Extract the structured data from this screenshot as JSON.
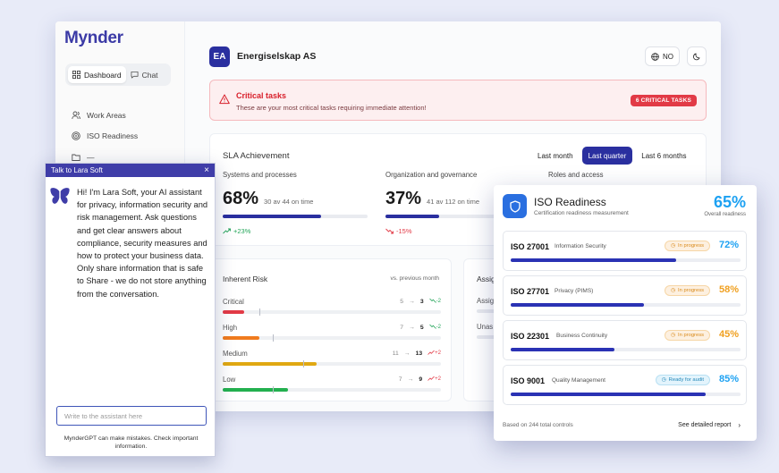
{
  "app": {
    "logo": "Mynder",
    "modes": [
      {
        "label": "Dashboard",
        "icon": "grid-icon"
      },
      {
        "label": "Chat",
        "icon": "chat-icon"
      }
    ],
    "nav": [
      {
        "label": "Work Areas",
        "icon": "users-icon"
      },
      {
        "label": "ISO Readiness",
        "icon": "target-icon"
      },
      {
        "label": "—",
        "icon": "folder-icon"
      }
    ],
    "org": {
      "initials": "EA",
      "name": "Energiselskap AS"
    },
    "language": "NO"
  },
  "alert": {
    "title": "Critical tasks",
    "subtitle": "These are your most critical tasks requiring immediate attention!",
    "badge": "6 CRITICAL TASKS"
  },
  "sla": {
    "title": "SLA Achievement",
    "ranges": [
      "Last month",
      "Last quarter",
      "Last 6 months"
    ],
    "active_range": "Last quarter",
    "metrics": [
      {
        "label": "Systems and processes",
        "pct": "68%",
        "detail": "30 av 44 on time",
        "fraction": 0.68,
        "trend": "+23%",
        "direction": "up"
      },
      {
        "label": "Organization and governance",
        "pct": "37%",
        "detail": "41 av 112 on time",
        "fraction": 0.37,
        "trend": "-15%",
        "direction": "down"
      },
      {
        "label": "Roles and access",
        "pct": "",
        "detail": "",
        "fraction": 0,
        "trend": "",
        "direction": ""
      }
    ]
  },
  "risk": {
    "title": "Inherent Risk",
    "compare": "vs. previous month",
    "rows": [
      {
        "label": "Critical",
        "from": "5",
        "to": "3",
        "delta": "-2",
        "trend": "down",
        "color": "#e23a46",
        "fraction": 0.1,
        "prev_fraction": 0.17
      },
      {
        "label": "High",
        "from": "7",
        "to": "5",
        "delta": "-2",
        "trend": "down",
        "color": "#f07b1e",
        "fraction": 0.17,
        "prev_fraction": 0.23
      },
      {
        "label": "Medium",
        "from": "11",
        "to": "13",
        "delta": "+2",
        "trend": "up",
        "color": "#e0a812",
        "fraction": 0.43,
        "prev_fraction": 0.37
      },
      {
        "label": "Low",
        "from": "7",
        "to": "9",
        "delta": "+2",
        "trend": "up",
        "color": "#23b04f",
        "fraction": 0.3,
        "prev_fraction": 0.23
      }
    ]
  },
  "assign": {
    "title": "Assig",
    "rows": [
      "Assig",
      "Unas"
    ]
  },
  "iso": {
    "title": "ISO Readiness",
    "subtitle": "Certification readiness measurement",
    "overall": "65%",
    "overall_label": "Overall readiness",
    "items": [
      {
        "code": "ISO 27001",
        "name": "Information Security",
        "status": "In progress",
        "status_type": "prog",
        "pct": "72%",
        "fraction": 0.72,
        "color": "#1da1f2"
      },
      {
        "code": "ISO 27701",
        "name": "Privacy (PIMS)",
        "status": "In progress",
        "status_type": "prog",
        "pct": "58%",
        "fraction": 0.58,
        "color": "#f0a020"
      },
      {
        "code": "ISO 22301",
        "name": "Business Continuity",
        "status": "In progress",
        "status_type": "prog",
        "pct": "45%",
        "fraction": 0.45,
        "color": "#f0a020"
      },
      {
        "code": "ISO 9001",
        "name": "Quality Management",
        "status": "Ready for audit",
        "status_type": "ready",
        "pct": "85%",
        "fraction": 0.85,
        "color": "#1da1f2"
      }
    ],
    "footer_left": "Based on 244 total controls",
    "footer_right": "See detailed report"
  },
  "chat": {
    "title": "Talk to Lara Soft",
    "close": "×",
    "message": "Hi! I'm Lara Soft, your AI assistant for privacy, information security and risk management. Ask questions and get clear answers about compliance, security measures and how to protect your business data. Only share information that is safe to Share - we do not store anything from the conversation.",
    "input_placeholder": "Write to the assistant here",
    "disclaimer": "MynderGPT can make mistakes. Check important information."
  }
}
